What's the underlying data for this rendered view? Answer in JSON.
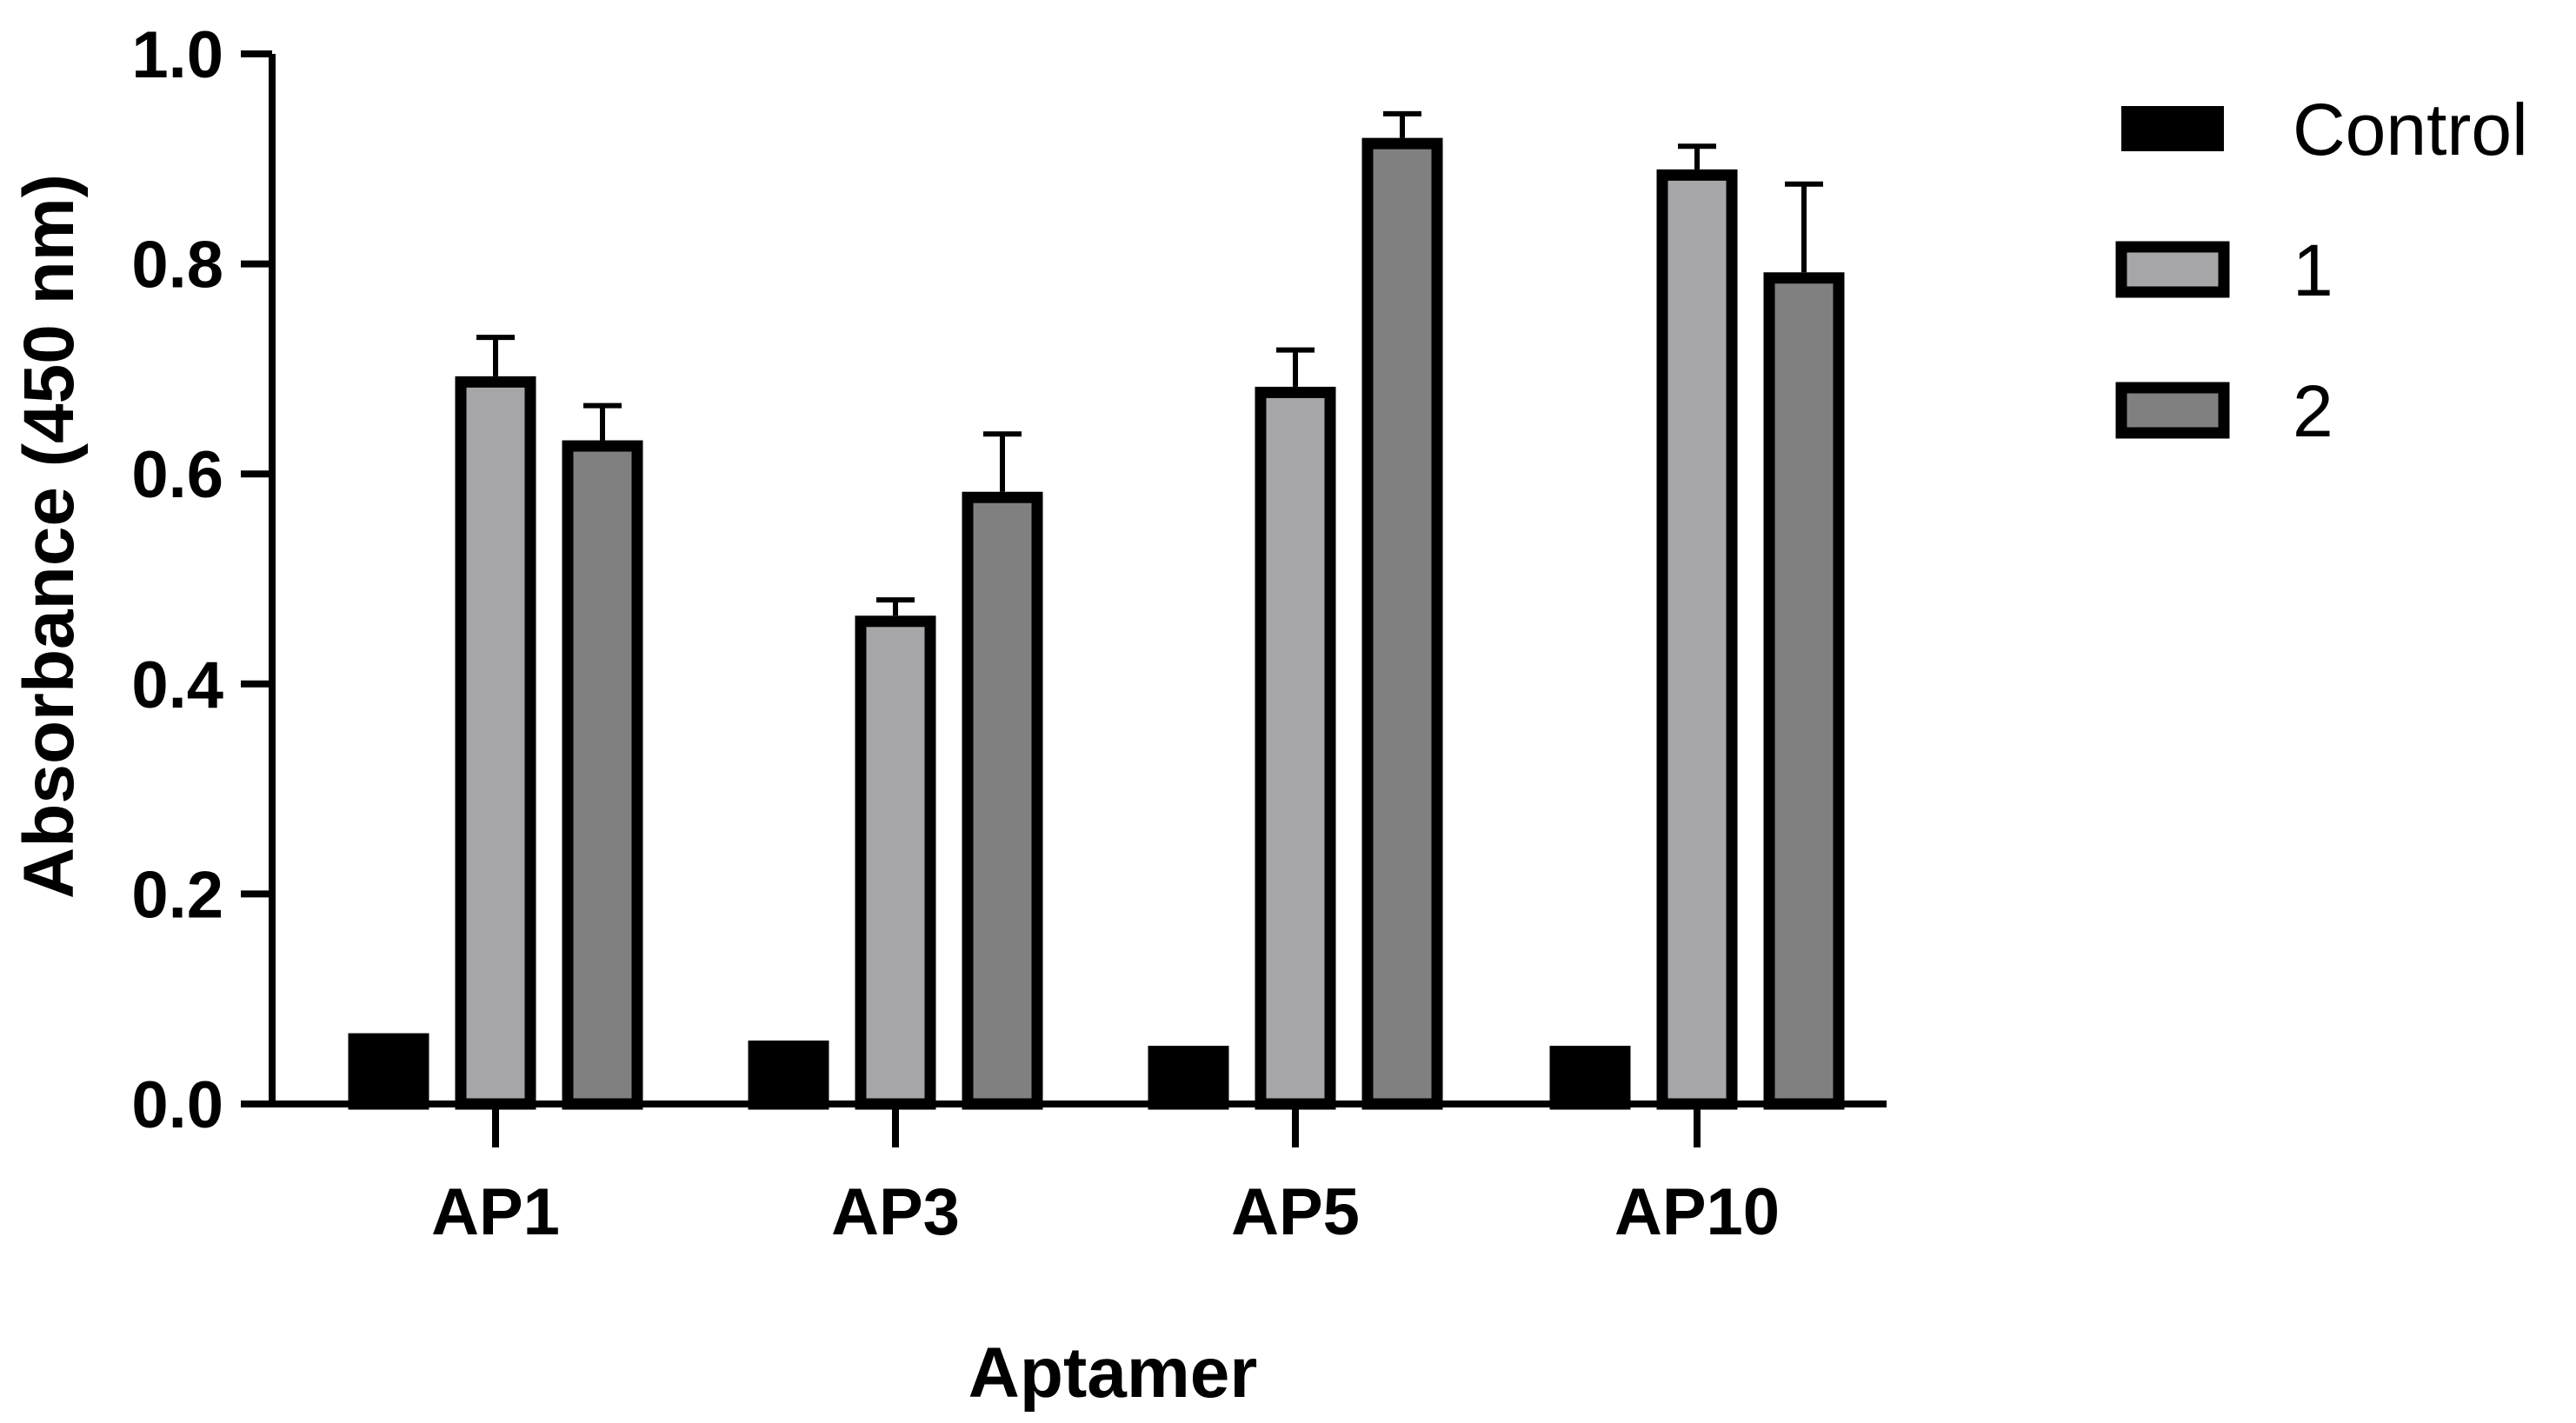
{
  "chart_data": {
    "type": "bar",
    "title": "",
    "xlabel": "Aptamer",
    "ylabel": "Absorbance (450 nm)",
    "ylim": [
      0,
      1.0
    ],
    "yticks": [
      "0.0",
      "0.2",
      "0.4",
      "0.6",
      "0.8",
      "1.0"
    ],
    "categories": [
      "AP1",
      "AP3",
      "AP5",
      "AP10"
    ],
    "series": [
      {
        "name": "Control",
        "color": "#000000",
        "values": [
          0.062,
          0.055,
          0.05,
          0.05
        ],
        "errors": [
          0,
          0,
          0,
          0
        ]
      },
      {
        "name": "1",
        "color": "#a6a6a8",
        "values": [
          0.693,
          0.465,
          0.683,
          0.89
        ],
        "errors": [
          0.037,
          0.015,
          0.035,
          0.022
        ]
      },
      {
        "name": "2",
        "color": "#808080",
        "values": [
          0.632,
          0.583,
          0.92,
          0.792
        ],
        "errors": [
          0.033,
          0.055,
          0.023,
          0.084
        ]
      }
    ],
    "legend_position": "top-right",
    "grid": false
  }
}
